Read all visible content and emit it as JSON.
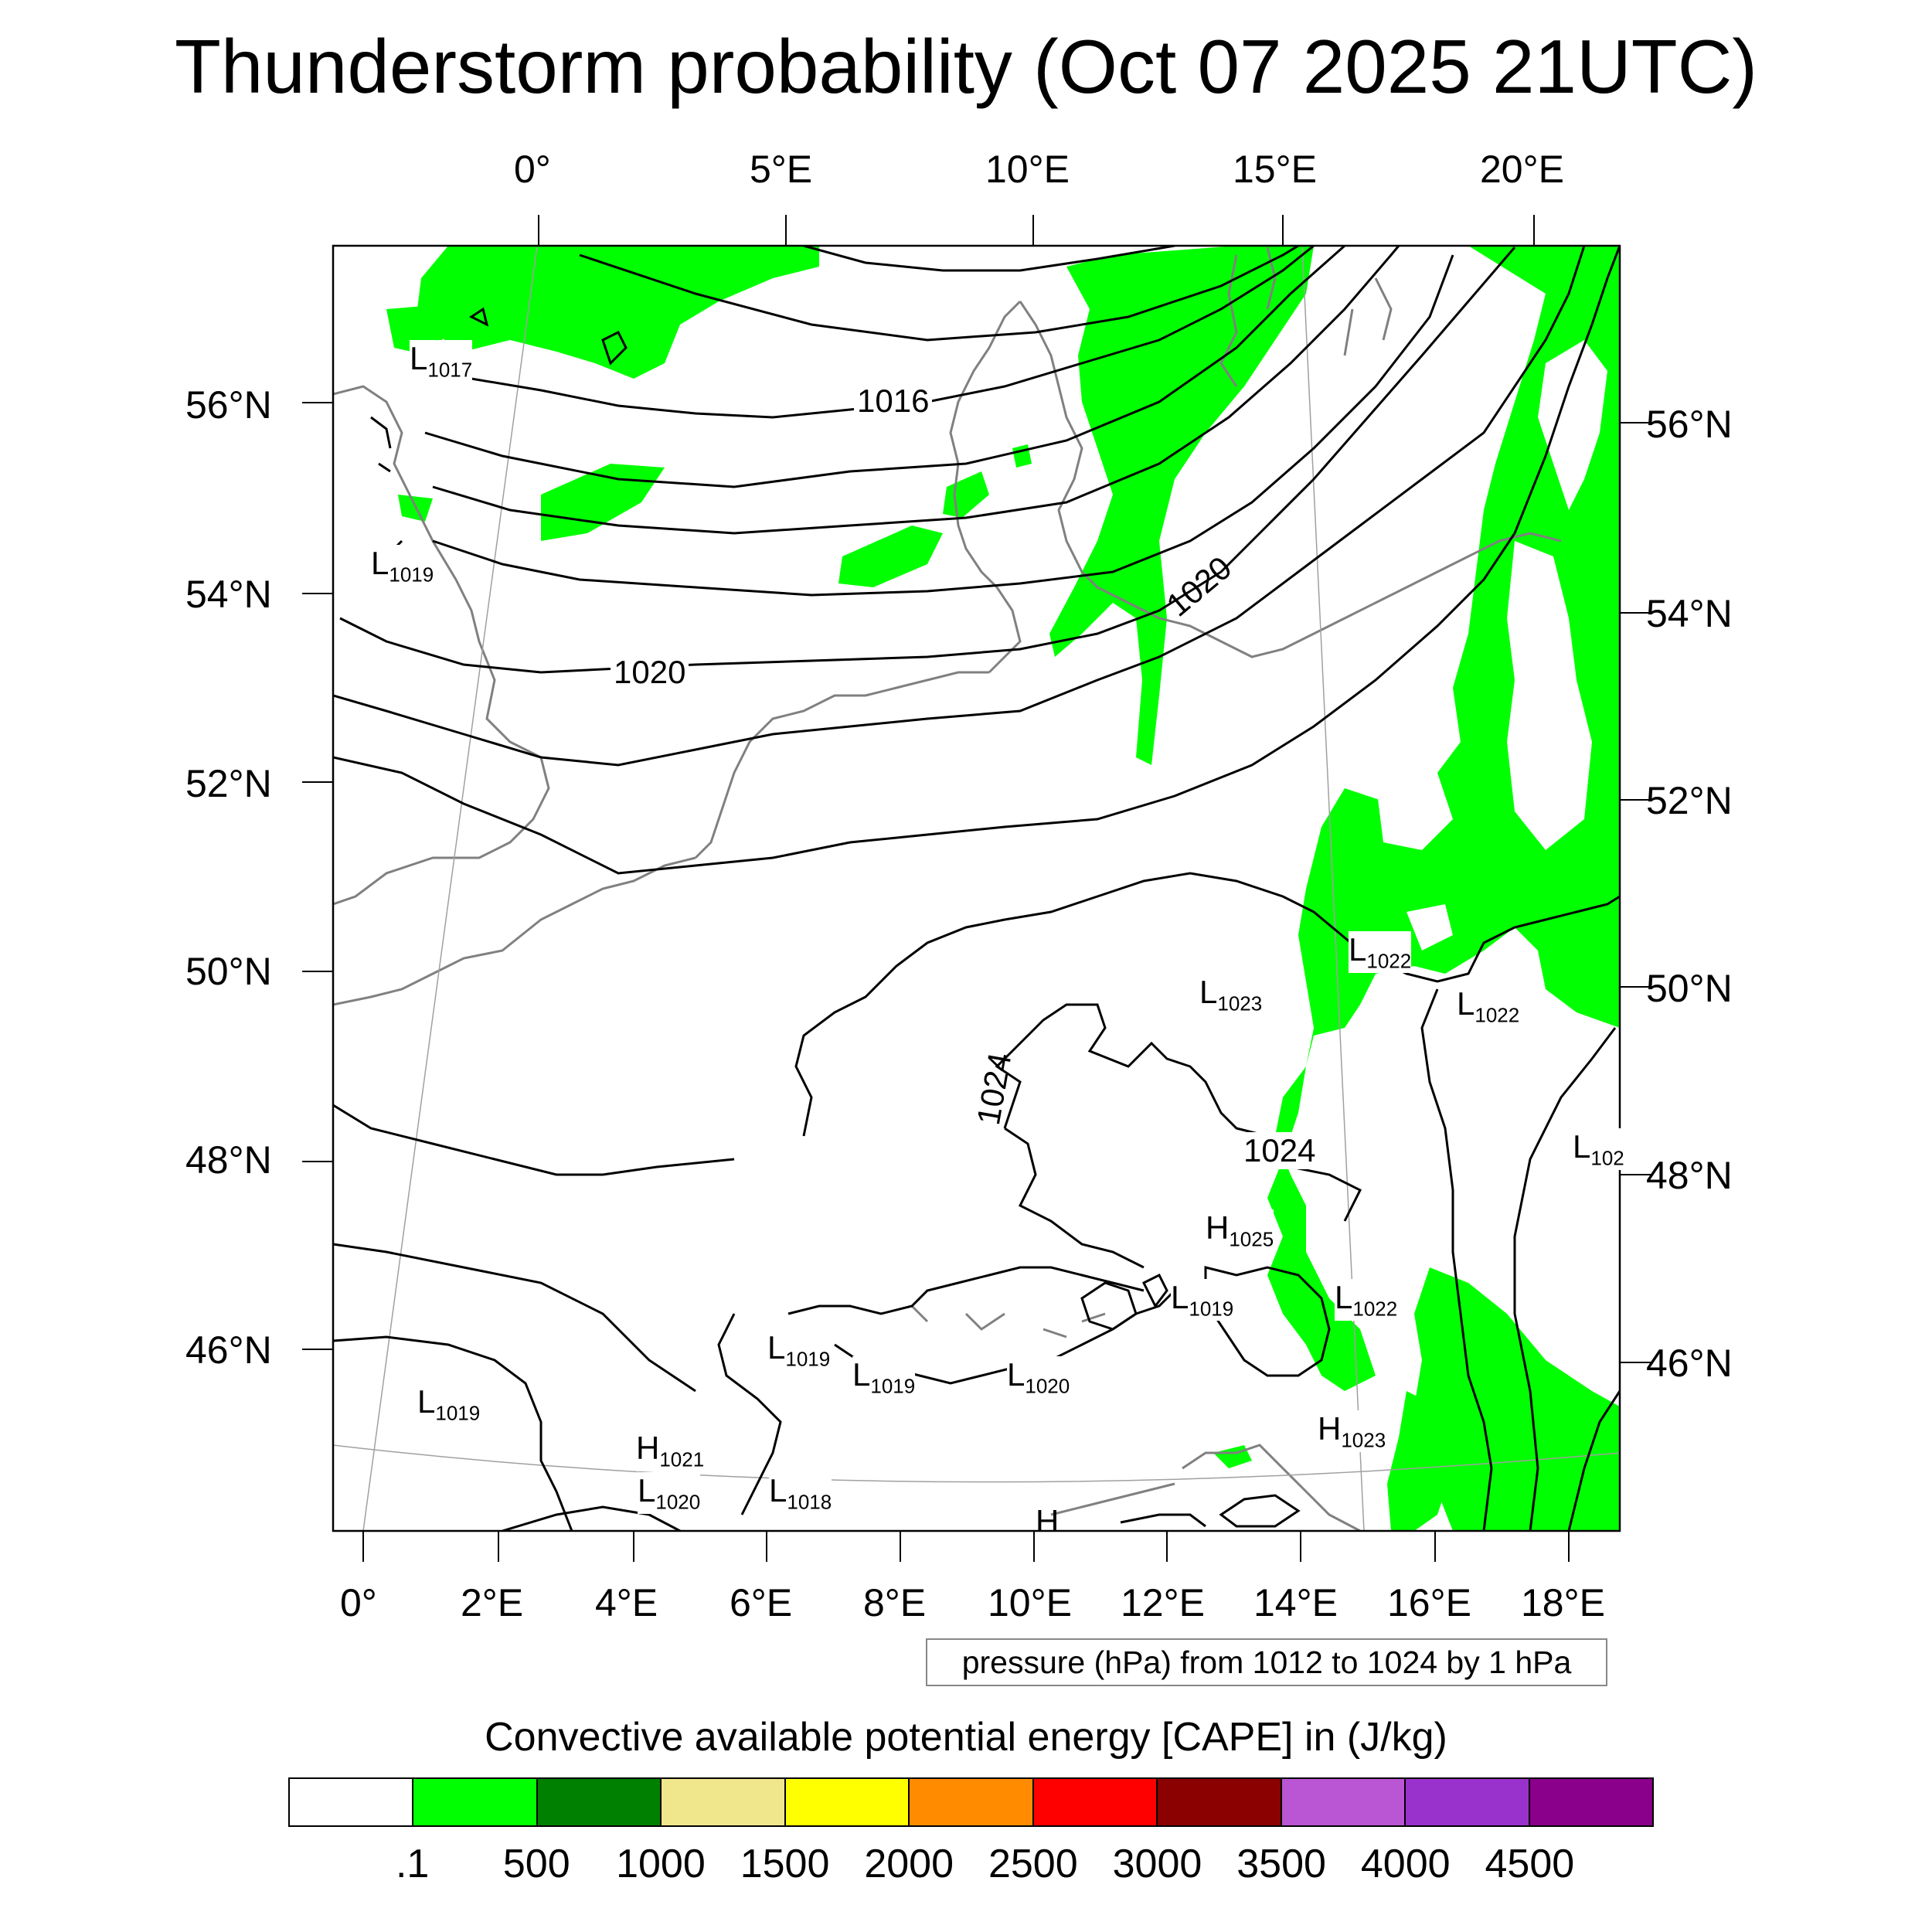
{
  "title": "Thunderstorm probability (Oct 07 2025 21UTC)",
  "axes": {
    "top_lon_labels": [
      "0°",
      "5°E",
      "10°E",
      "15°E",
      "20°E"
    ],
    "bottom_lon_labels": [
      "0°",
      "2°E",
      "4°E",
      "6°E",
      "8°E",
      "10°E",
      "12°E",
      "14°E",
      "16°E",
      "18°E"
    ],
    "left_lat_labels": [
      "56°N",
      "54°N",
      "52°N",
      "50°N",
      "48°N",
      "46°N"
    ],
    "right_lat_labels": [
      "56°N",
      "54°N",
      "52°N",
      "50°N",
      "48°N",
      "46°N"
    ]
  },
  "pressure_note": "pressure (hPa) from 1012 to 1024 by 1 hPa",
  "contour_labels": [
    "1016",
    "1020",
    "1020",
    "1024",
    "1024"
  ],
  "pressure_centers": [
    {
      "type": "L",
      "value": "1017"
    },
    {
      "type": "L",
      "value": "1019"
    },
    {
      "type": "L",
      "value": "1022"
    },
    {
      "type": "L",
      "value": "1023"
    },
    {
      "type": "L",
      "value": "1022"
    },
    {
      "type": "L",
      "value": "102"
    },
    {
      "type": "H",
      "value": "1025"
    },
    {
      "type": "L",
      "value": "1019"
    },
    {
      "type": "L",
      "value": "1022"
    },
    {
      "type": "L",
      "value": "1019"
    },
    {
      "type": "L",
      "value": "1019"
    },
    {
      "type": "L",
      "value": "1020"
    },
    {
      "type": "L",
      "value": "1019"
    },
    {
      "type": "H",
      "value": "1023"
    },
    {
      "type": "H",
      "value": "1021"
    },
    {
      "type": "L",
      "value": "1020"
    },
    {
      "type": "L",
      "value": "1018"
    },
    {
      "type": "H",
      "value": ""
    }
  ],
  "colorbar": {
    "title": "Convective available potential energy [CAPE] in (J/kg)",
    "colors": [
      "#ffffff",
      "#00ff00",
      "#008000",
      "#f0e68c",
      "#ffff00",
      "#ff8c00",
      "#ff0000",
      "#8b0000",
      "#ba55d3",
      "#9932cc",
      "#8b008b"
    ],
    "labels": [
      ".1",
      "500",
      "1000",
      "1500",
      "2000",
      "2500",
      "3000",
      "3500",
      "4000",
      "4500"
    ]
  },
  "field_color": "#00ff00",
  "coast_color": "#808080",
  "isobar_color": "#000000"
}
